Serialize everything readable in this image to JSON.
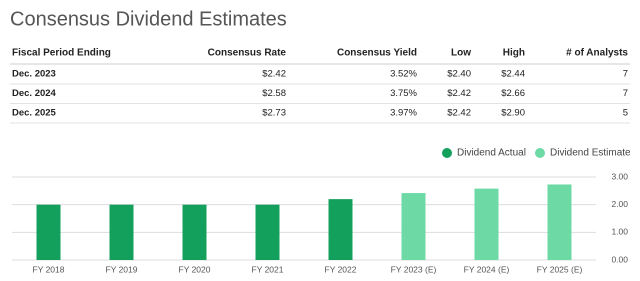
{
  "title": "Consensus Dividend Estimates",
  "table": {
    "header": [
      "Fiscal Period Ending",
      "Consensus Rate",
      "Consensus Yield",
      "Low",
      "High",
      "# of Analysts"
    ],
    "rows": [
      [
        "Dec. 2023",
        "$2.42",
        "3.52%",
        "$2.40",
        "$2.44",
        "7"
      ],
      [
        "Dec. 2024",
        "$2.58",
        "3.75%",
        "$2.42",
        "$2.66",
        "7"
      ],
      [
        "Dec. 2025",
        "$2.73",
        "3.97%",
        "$2.42",
        "$2.90",
        "5"
      ]
    ]
  },
  "chart_data": {
    "type": "bar",
    "categories": [
      "FY 2018",
      "FY 2019",
      "FY 2020",
      "FY 2021",
      "FY 2022",
      "FY 2023 (E)",
      "FY 2024 (E)",
      "FY 2025 (E)"
    ],
    "series": [
      {
        "name": "Dividend Actual",
        "color": "#12a05c",
        "values": [
          2.0,
          2.0,
          2.0,
          2.0,
          2.2,
          null,
          null,
          null
        ]
      },
      {
        "name": "Dividend Estimate",
        "color": "#6ddaa6",
        "values": [
          null,
          null,
          null,
          null,
          null,
          2.42,
          2.58,
          2.73
        ]
      }
    ],
    "ylim": [
      0,
      3.0
    ],
    "yticks": [
      {
        "value": 0,
        "label": "0.00"
      },
      {
        "value": 1,
        "label": "1.00"
      },
      {
        "value": 2,
        "label": "2.00"
      },
      {
        "value": 3,
        "label": "3.00"
      }
    ],
    "grid": true
  }
}
